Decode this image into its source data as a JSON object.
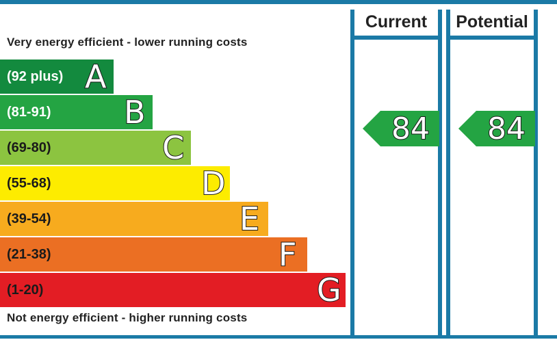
{
  "chart_data": {
    "type": "bar",
    "top_caption": "Very energy efficient - lower running costs",
    "bottom_caption": "Not energy efficient - higher running costs",
    "bands": [
      {
        "letter": "A",
        "range": "(92 plus)",
        "color": "#138a3e",
        "dark_text": false
      },
      {
        "letter": "B",
        "range": "(81-91)",
        "color": "#24a443",
        "dark_text": false
      },
      {
        "letter": "C",
        "range": "(69-80)",
        "color": "#8cc440",
        "dark_text": true
      },
      {
        "letter": "D",
        "range": "(55-68)",
        "color": "#fdec00",
        "dark_text": true
      },
      {
        "letter": "E",
        "range": "(39-54)",
        "color": "#f7ab1e",
        "dark_text": true
      },
      {
        "letter": "F",
        "range": "(21-38)",
        "color": "#eb6f23",
        "dark_text": true
      },
      {
        "letter": "G",
        "range": "(1-20)",
        "color": "#e31d24",
        "dark_text": true
      }
    ],
    "columns": [
      {
        "label": "Current",
        "value": "84",
        "band_color": "#24a443"
      },
      {
        "label": "Potential",
        "value": "84",
        "band_color": "#24a443"
      }
    ]
  },
  "colors": {
    "frame": "#1b7aa6"
  }
}
